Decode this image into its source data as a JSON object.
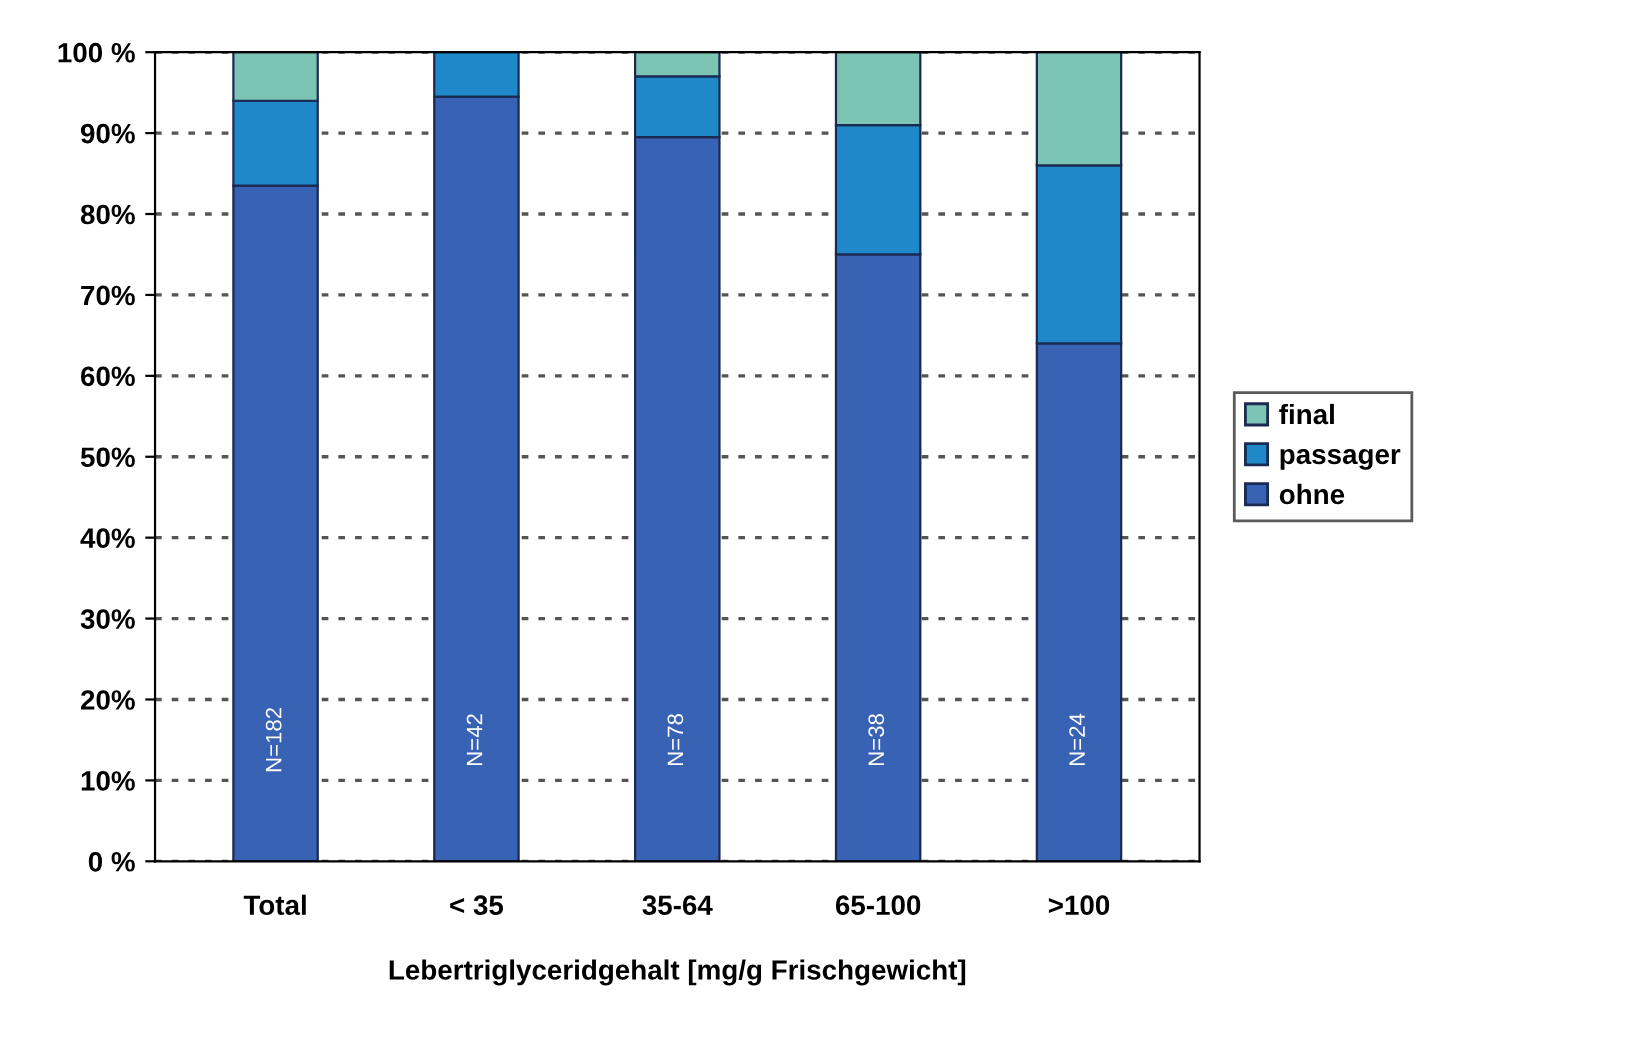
{
  "chart_data": {
    "type": "bar",
    "stacked": true,
    "xlabel": "Lebertriglyceridgehalt [mg/g Frischgewicht]",
    "categories": [
      "Total",
      "< 35",
      "35-64",
      "65-100",
      ">100"
    ],
    "series": [
      {
        "name": "ohne",
        "color": "#3862b4",
        "values": [
          83.5,
          94.5,
          89.5,
          75,
          64
        ]
      },
      {
        "name": "passager",
        "color": "#1e88c9",
        "values": [
          10.5,
          5.5,
          7.5,
          16,
          22
        ]
      },
      {
        "name": "final",
        "color": "#7cc4b4",
        "values": [
          6,
          0,
          3,
          9,
          14
        ]
      }
    ],
    "ylim": [
      0,
      100
    ],
    "yticks": [
      {
        "value": 0,
        "label": "0 %"
      },
      {
        "value": 10,
        "label": "10%"
      },
      {
        "value": 20,
        "label": "20%"
      },
      {
        "value": 30,
        "label": "30%"
      },
      {
        "value": 40,
        "label": "40%"
      },
      {
        "value": 50,
        "label": "50%"
      },
      {
        "value": 60,
        "label": "60%"
      },
      {
        "value": 70,
        "label": "70%"
      },
      {
        "value": 80,
        "label": "80%"
      },
      {
        "value": 90,
        "label": "90%"
      },
      {
        "value": 100,
        "label": "100 %"
      }
    ],
    "annotations": [
      "N=182",
      "N=42",
      "N=78",
      "N=38",
      "N=24"
    ],
    "grid": "y",
    "legend": "right"
  }
}
